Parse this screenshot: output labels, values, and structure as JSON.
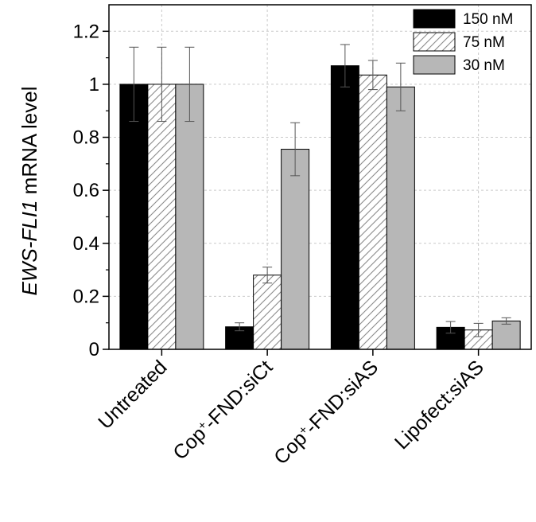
{
  "chart_data": {
    "type": "bar",
    "categories": [
      {
        "label": "Untreated",
        "superscript": "",
        "suffix": ""
      },
      {
        "label": "Cop",
        "superscript": "+",
        "suffix": "-FND:siCt"
      },
      {
        "label": "Cop",
        "superscript": "+",
        "suffix": "-FND:siAS"
      },
      {
        "label": "Lipofect:siAS",
        "superscript": "",
        "suffix": ""
      }
    ],
    "series": [
      {
        "name": "150 nM",
        "color": "#000000",
        "pattern": "solid",
        "values": [
          1.0,
          0.085,
          1.07,
          0.083
        ],
        "errors": [
          0.14,
          0.015,
          0.08,
          0.022
        ]
      },
      {
        "name": "75 nM",
        "color": "#ffffff",
        "pattern": "hatch",
        "values": [
          1.0,
          0.28,
          1.035,
          0.073
        ],
        "errors": [
          0.14,
          0.03,
          0.055,
          0.025
        ]
      },
      {
        "name": "30 nM",
        "color": "#b7b7b7",
        "pattern": "solid",
        "values": [
          1.0,
          0.755,
          0.99,
          0.107
        ],
        "errors": [
          0.14,
          0.1,
          0.09,
          0.012
        ]
      }
    ],
    "ylabel_italic": "EWS-FLI1",
    "ylabel_rest": " mRNA level",
    "xlabel": "",
    "ylim": [
      0,
      1.3
    ],
    "yticks": [
      0,
      0.2,
      0.4,
      0.6,
      0.8,
      1,
      1.2
    ],
    "ytick_labels": [
      "0",
      "0.2",
      "0.4",
      "0.6",
      "0.8",
      "1",
      "1.2"
    ],
    "grid": true,
    "legend_position": "top-right"
  }
}
